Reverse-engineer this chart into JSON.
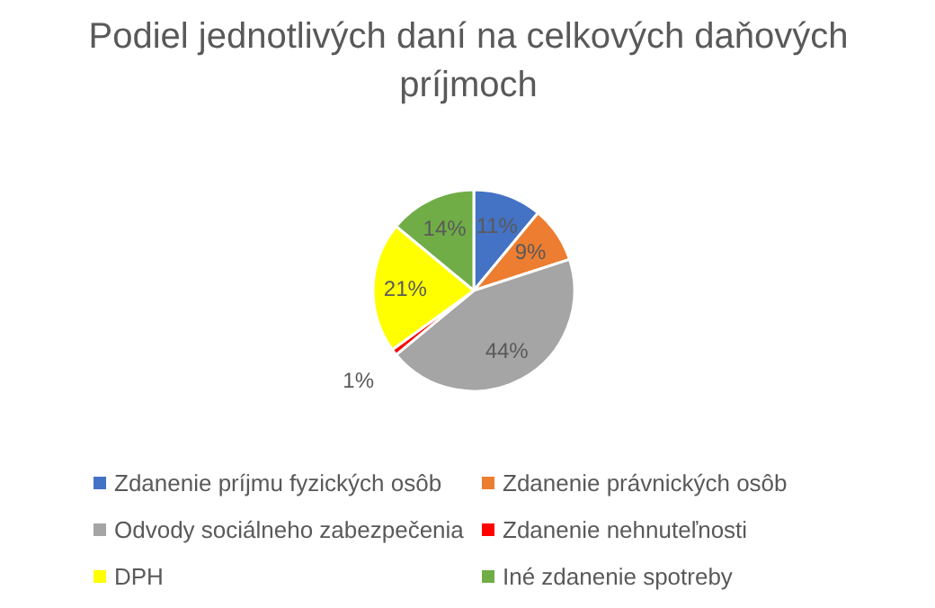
{
  "chart_data": {
    "type": "pie",
    "title": "Podiel jednotlivých daní na celkových daňových príjmoch",
    "categories": [
      "Zdanenie príjmu fyzických osôb",
      "Zdanenie právnických osôb",
      "Odvody sociálneho zabezpečenia",
      "Zdanenie nehnuteľnosti",
      "DPH",
      "Iné zdanenie spotreby"
    ],
    "values": [
      11,
      9,
      44,
      1,
      21,
      14
    ],
    "colors": [
      "#4472c4",
      "#ed7d31",
      "#a5a5a5",
      "#ff0000",
      "#ffff00",
      "#70ad47"
    ],
    "value_labels": [
      "11%",
      "9%",
      "44%",
      "1%",
      "21%",
      "14%"
    ],
    "legend": "bottom"
  }
}
